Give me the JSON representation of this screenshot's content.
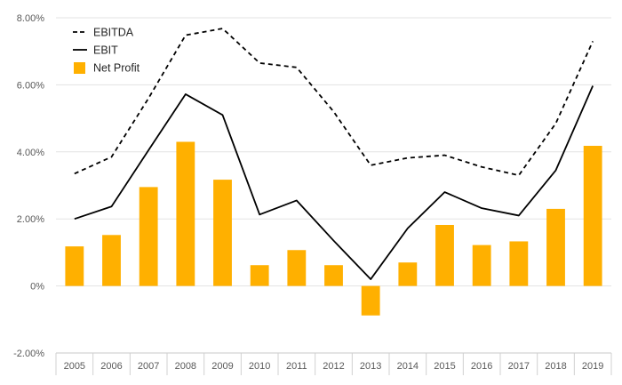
{
  "chart_data": {
    "type": "bar",
    "title": "",
    "xlabel": "",
    "ylabel": "",
    "categories": [
      "2005",
      "2006",
      "2007",
      "2008",
      "2009",
      "2010",
      "2011",
      "2012",
      "2013",
      "2014",
      "2015",
      "2016",
      "2017",
      "2018",
      "2019"
    ],
    "ylim": [
      -2,
      8
    ],
    "yticks": [
      -2,
      0,
      2,
      4,
      6,
      8
    ],
    "ytick_labels": [
      "-2.00%",
      "0%",
      "2.00%",
      "4.00%",
      "6.00%",
      "8.00%"
    ],
    "grid": true,
    "legend_position": "top-left",
    "series": [
      {
        "name": "EBITDA",
        "kind": "line",
        "style": "dashed",
        "color": "#000000",
        "values": [
          3.35,
          3.85,
          5.6,
          7.48,
          7.68,
          6.65,
          6.52,
          5.2,
          3.6,
          3.82,
          3.9,
          3.55,
          3.3,
          4.85,
          7.3
        ]
      },
      {
        "name": "EBIT",
        "kind": "line",
        "style": "solid",
        "color": "#000000",
        "values": [
          2.0,
          2.37,
          4.05,
          5.72,
          5.1,
          2.13,
          2.55,
          1.35,
          0.2,
          1.72,
          2.8,
          2.32,
          2.1,
          3.45,
          5.97
        ]
      },
      {
        "name": "Net Profit",
        "kind": "bar",
        "color": "#FFB000",
        "values": [
          1.18,
          1.52,
          2.95,
          4.3,
          3.17,
          0.62,
          1.07,
          0.62,
          -0.88,
          0.7,
          1.82,
          1.22,
          1.33,
          2.3,
          4.18
        ]
      }
    ]
  }
}
